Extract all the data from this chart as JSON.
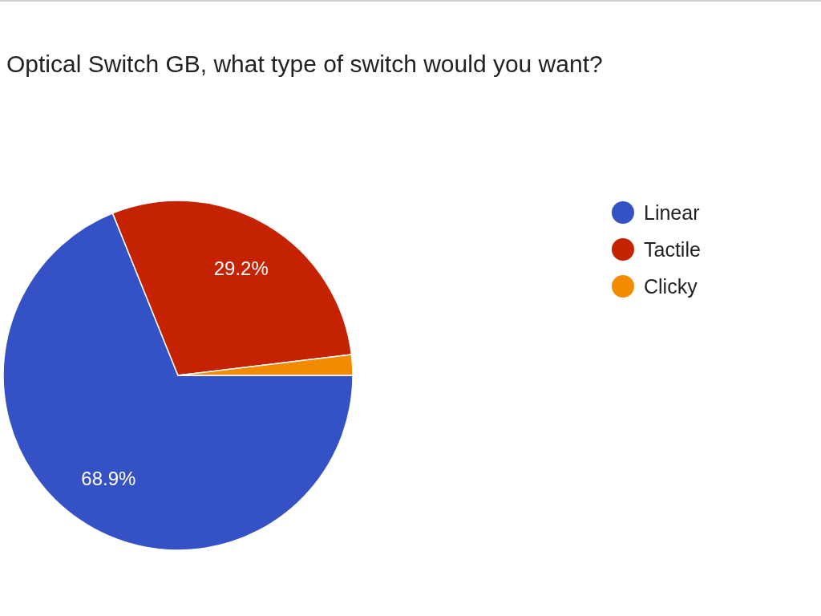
{
  "chart_data": {
    "type": "pie",
    "title": "Optical Switch GB, what type of switch would you want?",
    "categories": [
      "Linear",
      "Tactile",
      "Clicky"
    ],
    "values": [
      68.9,
      29.2,
      1.9
    ],
    "colors": [
      "#3551c6",
      "#c42200",
      "#f28b00"
    ],
    "value_labels": [
      "68.9%",
      "29.2%",
      null
    ],
    "legend": "right"
  }
}
